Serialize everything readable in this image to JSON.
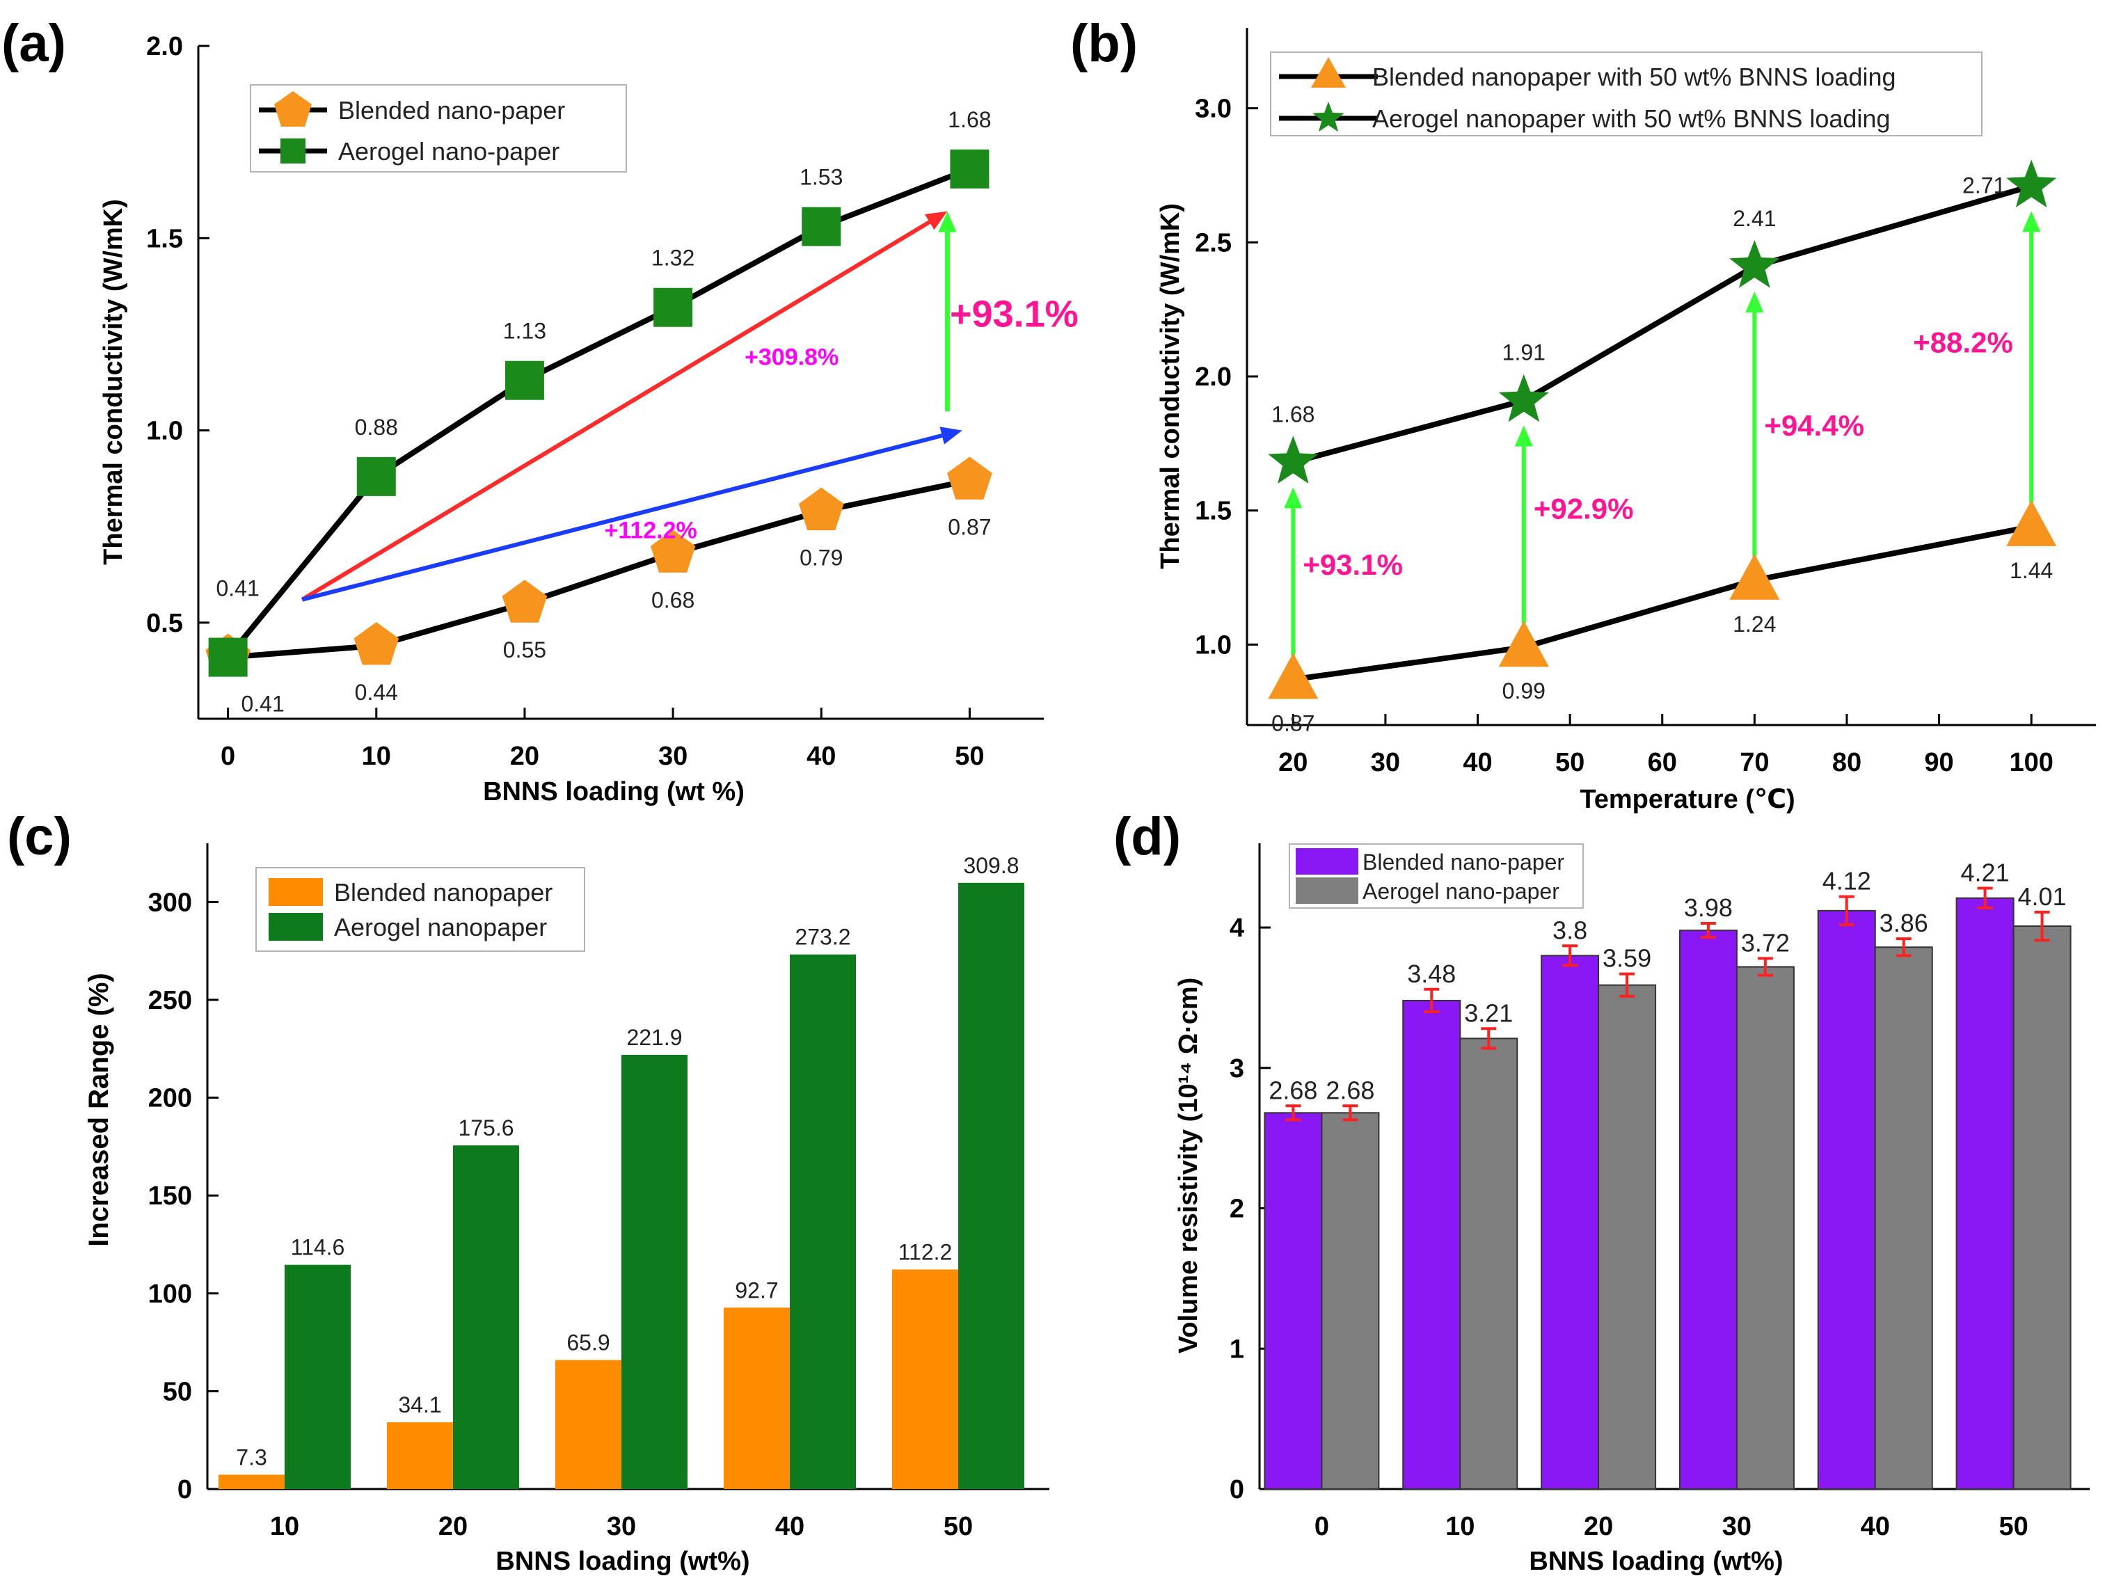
{
  "chart_data": [
    {
      "panel": "(a)",
      "type": "line",
      "xlabel": "BNNS loading (wt %)",
      "ylabel": "Thermal conductivity (W/mK)",
      "xlim": [
        -2,
        55
      ],
      "ylim": [
        0.25,
        2.0
      ],
      "xticks": [
        0,
        10,
        20,
        30,
        40,
        50
      ],
      "yticks": [
        0.5,
        1.0,
        1.5,
        2.0
      ],
      "ytick_labels": [
        "0.5",
        "1.0",
        "1.5",
        "2.0"
      ],
      "x": [
        0,
        10,
        20,
        30,
        40,
        50
      ],
      "series": [
        {
          "name": "Blended nano-paper",
          "marker": "pentagon",
          "color": "#f7941d",
          "values": [
            0.41,
            0.44,
            0.55,
            0.68,
            0.79,
            0.87
          ],
          "labels": [
            "0.41",
            "0.44",
            "0.55",
            "0.68",
            "0.79",
            "0.87"
          ]
        },
        {
          "name": "Aerogel nano-paper",
          "marker": "square",
          "color": "#1a8a1a",
          "values": [
            0.41,
            0.88,
            1.13,
            1.32,
            1.53,
            1.68
          ],
          "labels": [
            "0.41",
            "0.88",
            "1.13",
            "1.32",
            "1.53",
            "1.68"
          ]
        }
      ],
      "annotations": [
        {
          "text": "+309.8%",
          "color": "#ff00ff",
          "arrow_color": "#ff2a2a",
          "from": [
            5,
            0.56
          ],
          "to": [
            48.5,
            1.57
          ],
          "label_at": [
            38,
            1.17
          ]
        },
        {
          "text": "+112.2%",
          "color": "#ff00ff",
          "arrow_color": "#1a3cff",
          "from": [
            5,
            0.56
          ],
          "to": [
            49.5,
            1.0
          ],
          "label_at": [
            28.5,
            0.72
          ]
        },
        {
          "text": "+93.1%",
          "color": "#ff1493",
          "arrow_color": "#33ff33",
          "from": [
            48.5,
            1.05
          ],
          "to": [
            48.5,
            1.57
          ],
          "label_at": [
            53,
            1.27
          ]
        }
      ]
    },
    {
      "panel": "(b)",
      "type": "line",
      "xlabel": "Temperature (℃)",
      "ylabel": "Thermal conductivity (W/mK)",
      "xlim": [
        15,
        107
      ],
      "ylim": [
        0.7,
        3.3
      ],
      "xticks": [
        20,
        30,
        40,
        50,
        60,
        70,
        80,
        90,
        100
      ],
      "yticks": [
        1.0,
        1.5,
        2.0,
        2.5,
        3.0
      ],
      "ytick_labels": [
        "1.0",
        "1.5",
        "2.0",
        "2.5",
        "3.0"
      ],
      "x": [
        20,
        45,
        70,
        100
      ],
      "series": [
        {
          "name": "Blended nanopaper with 50 wt% BNNS loading",
          "marker": "triangle",
          "color": "#f7941d",
          "values": [
            0.87,
            0.99,
            1.24,
            1.44
          ],
          "labels": [
            "0.87",
            "0.99",
            "1.24",
            "1.44"
          ]
        },
        {
          "name": "Aerogel nanopaper with 50 wt% BNNS loading",
          "marker": "star",
          "color": "#1a8a1a",
          "values": [
            1.68,
            1.91,
            2.41,
            2.71
          ],
          "labels": [
            "1.68",
            "1.91",
            "2.41",
            "2.71"
          ]
        }
      ],
      "annotations": [
        {
          "text": "+93.1%",
          "x": 20
        },
        {
          "text": "+92.9%",
          "x": 45
        },
        {
          "text": "+94.4%",
          "x": 70
        },
        {
          "text": "+88.2%",
          "x": 100
        }
      ]
    },
    {
      "panel": "(c)",
      "type": "bar",
      "xlabel": "BNNS loading (wt%)",
      "ylabel": "Increased Range (%)",
      "ylim": [
        0,
        330
      ],
      "yticks": [
        0,
        50,
        100,
        150,
        200,
        250,
        300
      ],
      "categories": [
        "10",
        "20",
        "30",
        "40",
        "50"
      ],
      "series": [
        {
          "name": "Blended nanopaper",
          "color": "#ff8c00",
          "values": [
            7.3,
            34.1,
            65.9,
            92.7,
            112.2
          ],
          "labels": [
            "7.3",
            "34.1",
            "65.9",
            "92.7",
            "112.2"
          ]
        },
        {
          "name": "Aerogel nanopaper",
          "color": "#0e7a1e",
          "values": [
            114.6,
            175.6,
            221.9,
            273.2,
            309.8
          ],
          "labels": [
            "114.6",
            "175.6",
            "221.9",
            "273.2",
            "309.8"
          ]
        }
      ]
    },
    {
      "panel": "(d)",
      "type": "bar",
      "xlabel": "BNNS loading (wt%)",
      "ylabel": "Volume resistivity (10¹⁴ Ω·cm)",
      "ylim": [
        0,
        4.6
      ],
      "yticks": [
        0,
        1,
        2,
        3,
        4
      ],
      "categories": [
        "0",
        "10",
        "20",
        "30",
        "40",
        "50"
      ],
      "series": [
        {
          "name": "Blended nano-paper",
          "color": "#8a18f5",
          "values": [
            2.68,
            3.48,
            3.8,
            3.98,
            4.12,
            4.21
          ],
          "errors": [
            0.05,
            0.08,
            0.07,
            0.05,
            0.1,
            0.07
          ],
          "labels": [
            "2.68",
            "3.48",
            "3.8",
            "3.98",
            "4.12",
            "4.21"
          ]
        },
        {
          "name": "Aerogel nano-paper",
          "color": "#7f7f7f",
          "values": [
            2.68,
            3.21,
            3.59,
            3.72,
            3.86,
            4.01
          ],
          "errors": [
            0.05,
            0.07,
            0.08,
            0.06,
            0.06,
            0.1
          ],
          "labels": [
            "2.68",
            "3.21",
            "3.59",
            "3.72",
            "3.86",
            "4.01"
          ]
        }
      ]
    }
  ],
  "colors": {
    "axis": "#000000",
    "line": "#000000",
    "error_bar": "#ff2020",
    "legend_border": "#b3b3b3"
  }
}
